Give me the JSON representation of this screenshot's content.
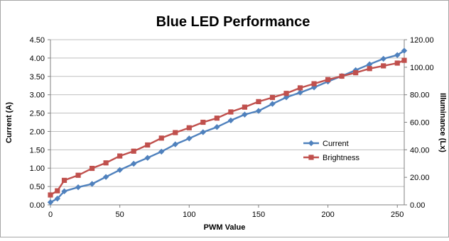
{
  "chart_data": {
    "type": "line",
    "title": "Blue LED Performance",
    "xlabel": "PWM Value",
    "ylabel": "Current (A)",
    "y2label": "Illuminance (Lx)",
    "xlim": [
      0,
      255
    ],
    "ylim": [
      0,
      4.5
    ],
    "y2lim": [
      0,
      120
    ],
    "x_ticks": [
      "0",
      "50",
      "100",
      "150",
      "200",
      "250"
    ],
    "y_ticks": [
      "0.00",
      "0.50",
      "1.00",
      "1.50",
      "2.00",
      "2.50",
      "3.00",
      "3.50",
      "4.00",
      "4.50"
    ],
    "y2_ticks": [
      "0.00",
      "20.00",
      "40.00",
      "60.00",
      "80.00",
      "100.00",
      "120.00"
    ],
    "grid": "horizontal",
    "legend_position": "right",
    "series": [
      {
        "name": "Current",
        "axis": "left",
        "color": "#4F81BD",
        "marker": "diamond",
        "x": [
          0,
          5,
          10,
          20,
          30,
          40,
          50,
          60,
          70,
          80,
          90,
          100,
          110,
          120,
          130,
          140,
          150,
          160,
          170,
          180,
          190,
          200,
          210,
          220,
          230,
          240,
          250,
          255
        ],
        "values": [
          0.07,
          0.17,
          0.37,
          0.48,
          0.57,
          0.76,
          0.95,
          1.12,
          1.28,
          1.45,
          1.65,
          1.81,
          1.98,
          2.12,
          2.3,
          2.46,
          2.56,
          2.75,
          2.93,
          3.06,
          3.2,
          3.36,
          3.51,
          3.67,
          3.83,
          3.98,
          4.08,
          4.2
        ]
      },
      {
        "name": "Brightness",
        "axis": "right",
        "color": "#C0504D",
        "marker": "square",
        "x": [
          0,
          5,
          10,
          20,
          30,
          40,
          50,
          60,
          70,
          80,
          90,
          100,
          110,
          120,
          130,
          140,
          150,
          160,
          170,
          180,
          190,
          200,
          210,
          220,
          230,
          240,
          250,
          255
        ],
        "values": [
          7.2,
          10.2,
          17.8,
          21.5,
          26.5,
          30.5,
          35.5,
          39.0,
          43.5,
          48.5,
          52.5,
          56.0,
          60.0,
          63.0,
          67.5,
          71.0,
          75.0,
          78.0,
          81.0,
          85.0,
          88.0,
          91.0,
          93.5,
          96.0,
          99.0,
          101.0,
          103.0,
          105.0
        ]
      }
    ]
  }
}
